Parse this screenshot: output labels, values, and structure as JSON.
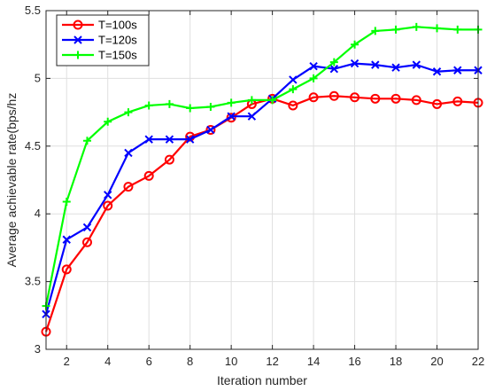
{
  "chart_data": {
    "type": "line",
    "xlabel": "Iteration number",
    "ylabel": "Average achievable rate(bps/hz",
    "xlim": [
      1,
      22
    ],
    "ylim": [
      3,
      5.5
    ],
    "x_ticks": [
      2,
      4,
      6,
      8,
      10,
      12,
      14,
      16,
      18,
      20,
      22
    ],
    "y_ticks": [
      3,
      3.5,
      4,
      4.5,
      5,
      5.5
    ],
    "grid": true,
    "legend_position": "top-left",
    "x": [
      1,
      2,
      3,
      4,
      5,
      6,
      7,
      8,
      9,
      10,
      11,
      12,
      13,
      14,
      15,
      16,
      17,
      18,
      19,
      20,
      21,
      22
    ],
    "series": [
      {
        "name": "T=100s",
        "color": "#ff0000",
        "marker": "circle",
        "values": [
          3.13,
          3.59,
          3.79,
          4.06,
          4.2,
          4.28,
          4.4,
          4.57,
          4.62,
          4.71,
          4.81,
          4.85,
          4.8,
          4.86,
          4.87,
          4.86,
          4.85,
          4.85,
          4.84,
          4.81,
          4.83,
          4.82
        ]
      },
      {
        "name": "T=120s",
        "color": "#0000ff",
        "marker": "x",
        "values": [
          3.26,
          3.81,
          3.9,
          4.14,
          4.45,
          4.55,
          4.55,
          4.55,
          4.62,
          4.72,
          4.72,
          4.85,
          4.99,
          5.09,
          5.07,
          5.11,
          5.1,
          5.08,
          5.1,
          5.05,
          5.06,
          5.06
        ]
      },
      {
        "name": "T=150s",
        "color": "#00ff00",
        "marker": "plus",
        "values": [
          3.32,
          4.09,
          4.54,
          4.68,
          4.75,
          4.8,
          4.81,
          4.78,
          4.79,
          4.82,
          4.84,
          4.84,
          4.92,
          5.0,
          5.12,
          5.25,
          5.35,
          5.36,
          5.38,
          5.37,
          5.36,
          5.36
        ]
      }
    ]
  }
}
